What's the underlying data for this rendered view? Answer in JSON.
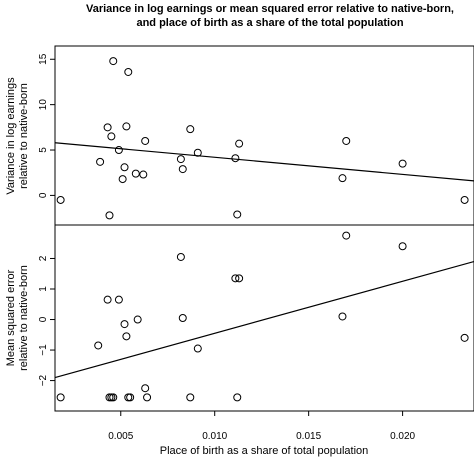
{
  "chart_data": {
    "type": "scatter",
    "title_lines": [
      "Variance in log earnings or mean squared error relative to native-born,",
      "and place of birth as a share of the total population"
    ],
    "xlabel": "Place of birth as a share of total population",
    "xlim": [
      0.0015,
      0.0238
    ],
    "xticks": [
      0.005,
      0.01,
      0.015,
      0.02
    ],
    "xtick_labels": [
      "0.005",
      "0.010",
      "0.015",
      "0.020"
    ],
    "panels": [
      {
        "id": "top",
        "ylabel_lines": [
          "Variance in log earnings",
          "relative to native-born"
        ],
        "ylim": [
          -2.6,
          15.8
        ],
        "yticks": [
          0,
          5,
          10,
          15
        ],
        "ytick_labels": [
          "0",
          "5",
          "10",
          "15"
        ],
        "points": [
          {
            "x": 0.0018,
            "y": -0.5
          },
          {
            "x": 0.0039,
            "y": 3.7
          },
          {
            "x": 0.0043,
            "y": 7.5
          },
          {
            "x": 0.0044,
            "y": -2.2
          },
          {
            "x": 0.0045,
            "y": 6.5
          },
          {
            "x": 0.0046,
            "y": 14.8
          },
          {
            "x": 0.0049,
            "y": 5.0
          },
          {
            "x": 0.0051,
            "y": 1.8
          },
          {
            "x": 0.0052,
            "y": 3.1
          },
          {
            "x": 0.0053,
            "y": 7.6
          },
          {
            "x": 0.0054,
            "y": 13.6
          },
          {
            "x": 0.0058,
            "y": 2.4
          },
          {
            "x": 0.0062,
            "y": 2.3
          },
          {
            "x": 0.0063,
            "y": 6.0
          },
          {
            "x": 0.0082,
            "y": 4.0
          },
          {
            "x": 0.0083,
            "y": 2.9
          },
          {
            "x": 0.0087,
            "y": 7.3
          },
          {
            "x": 0.0091,
            "y": 4.7
          },
          {
            "x": 0.0111,
            "y": 4.1
          },
          {
            "x": 0.0112,
            "y": -2.1
          },
          {
            "x": 0.0113,
            "y": 5.7
          },
          {
            "x": 0.0168,
            "y": 1.9
          },
          {
            "x": 0.017,
            "y": 6.0
          },
          {
            "x": 0.02,
            "y": 3.5
          },
          {
            "x": 0.0233,
            "y": -0.5
          }
        ],
        "fit_line": {
          "x": [
            0.0015,
            0.0238
          ],
          "y": [
            5.8,
            1.6
          ]
        }
      },
      {
        "id": "bottom",
        "ylabel_lines": [
          "Mean squared error",
          "relative to native-born"
        ],
        "ylim": [
          -2.8,
          2.9
        ],
        "yticks": [
          -2,
          -1,
          0,
          1,
          2
        ],
        "ytick_labels": [
          "−2",
          "−1",
          "0",
          "1",
          "2"
        ],
        "points": [
          {
            "x": 0.0018,
            "y": -2.55
          },
          {
            "x": 0.0038,
            "y": -0.85
          },
          {
            "x": 0.0043,
            "y": 0.65
          },
          {
            "x": 0.0044,
            "y": -2.55
          },
          {
            "x": 0.0045,
            "y": -2.55
          },
          {
            "x": 0.0046,
            "y": -2.55
          },
          {
            "x": 0.0049,
            "y": 0.65
          },
          {
            "x": 0.0052,
            "y": -0.15
          },
          {
            "x": 0.0053,
            "y": -0.55
          },
          {
            "x": 0.0054,
            "y": -2.55
          },
          {
            "x": 0.0055,
            "y": -2.55
          },
          {
            "x": 0.0059,
            "y": 0.0
          },
          {
            "x": 0.0063,
            "y": -2.25
          },
          {
            "x": 0.0064,
            "y": -2.55
          },
          {
            "x": 0.0082,
            "y": 2.05
          },
          {
            "x": 0.0083,
            "y": 0.05
          },
          {
            "x": 0.0087,
            "y": -2.55
          },
          {
            "x": 0.0091,
            "y": -0.95
          },
          {
            "x": 0.0111,
            "y": 1.35
          },
          {
            "x": 0.0113,
            "y": 1.35
          },
          {
            "x": 0.0112,
            "y": -2.55
          },
          {
            "x": 0.0168,
            "y": 0.1
          },
          {
            "x": 0.017,
            "y": 2.75
          },
          {
            "x": 0.02,
            "y": 2.4
          },
          {
            "x": 0.0233,
            "y": -0.6
          }
        ],
        "fit_line": {
          "x": [
            0.0015,
            0.0238
          ],
          "y": [
            -1.9,
            1.9
          ]
        }
      }
    ]
  }
}
